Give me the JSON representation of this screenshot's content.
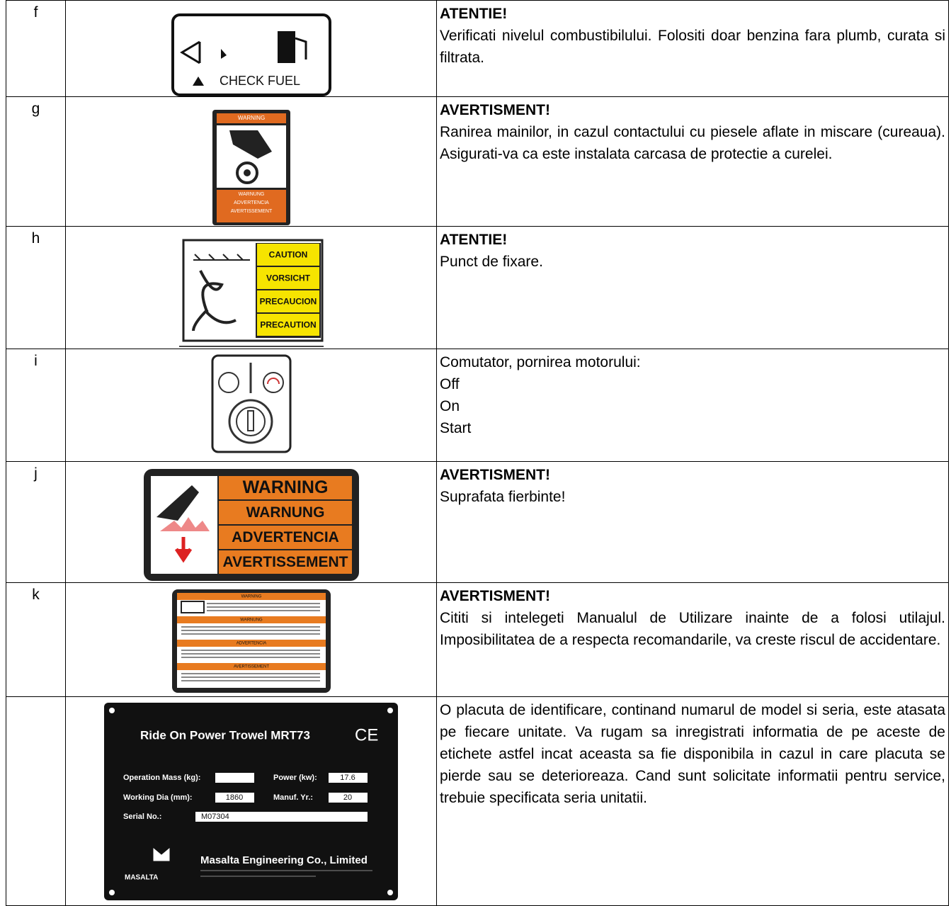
{
  "table": {
    "rows": [
      {
        "letter": "f",
        "label": [
          "CHECK FUEL"
        ],
        "title": "ATENTIE!",
        "lines": [
          "Verificati nivelul combustibilului. Folositi doar benzina fara plumb, curata si filtrata."
        ]
      },
      {
        "letter": "g",
        "label": [
          "WARNING",
          "WARNUNG",
          "ADVERTENCIA",
          "AVERTISSEMENT"
        ],
        "title": "AVERTISMENT!",
        "lines": [
          "Ranirea mainilor, in cazul contactului cu piesele aflate in miscare (cureaua). Asigurati-va ca este instalata carcasa de protectie a curelei."
        ]
      },
      {
        "letter": "h",
        "label": [
          "CAUTION",
          "VORSICHT",
          "PRECAUCION",
          "PRECAUTION"
        ],
        "title": "ATENTIE!",
        "lines": [
          "Punct de fixare."
        ]
      },
      {
        "letter": "i",
        "lines": [
          "Comutator, pornirea motorului:",
          "Off",
          "On",
          "Start"
        ]
      },
      {
        "letter": "j",
        "label": [
          "WARNING",
          "WARNUNG",
          "ADVERTENCIA",
          "AVERTISSEMENT"
        ],
        "title": "AVERTISMENT!",
        "lines": [
          "Suprafata fierbinte!"
        ]
      },
      {
        "letter": "k",
        "label": [
          "WARNING",
          "WARNUNG",
          "ADVERTENCIA",
          "AVERTISSEMENT"
        ],
        "title": "AVERTISMENT!",
        "lines": [
          "Cititi si intelegeti Manualul de Utilizare inainte de a folosi utilajul. Imposibilitatea de a respecta recomandarile, va creste riscul de accidentare."
        ]
      },
      {
        "label": [
          "Ride On Power Trowel MRT73",
          "CE",
          "Operation Mass (kg):",
          "Power (kw):",
          "17.6",
          "Working Dia (mm):",
          "1860",
          "Manuf. Yr.:",
          "20",
          "Serial No.:",
          "M07304",
          "Masalta Engineering Co., Limited",
          "MASALTA"
        ],
        "lines": [
          "O placuta de identificare, continand numarul de model si seria, este atasata pe fiecare unitate. Va rugam sa inregistrati informatia de pe aceste de etichete astfel incat aceasta sa fie disponibila in cazul in care placuta se pierde sau se deterioreaza. Cand sunt solicitate informatii pentru service, trebuie specificata seria unitatii."
        ]
      }
    ]
  }
}
